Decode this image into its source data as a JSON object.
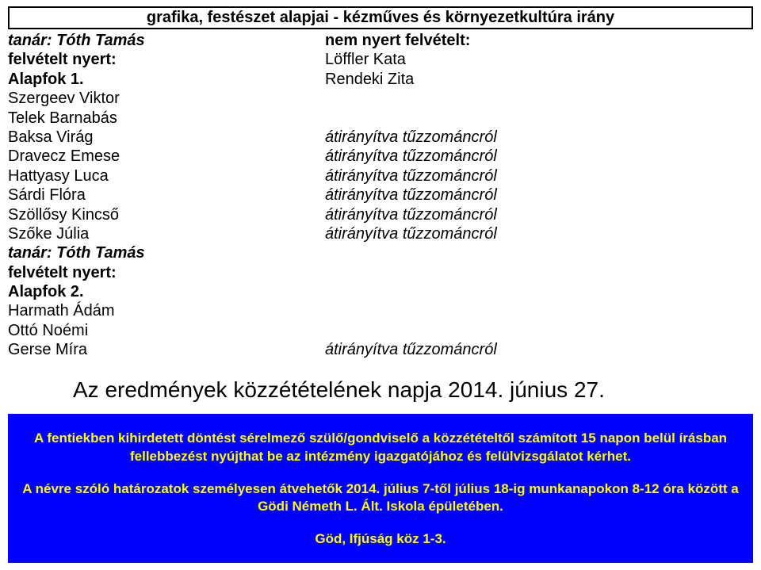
{
  "header_title": "grafika, festészet alapjai - kézműves és környezetkultúra irány",
  "left": {
    "l1": "tanár: Tóth Tamás",
    "l2": "felvételt nyert:",
    "l3": "Alapfok 1.",
    "l4": "Szergeev Viktor",
    "l5": "Telek Barnabás",
    "l6": "Baksa Virág",
    "l7": "Dravecz Emese",
    "l8": "Hattyasy Luca",
    "l9": "Sárdi Flóra",
    "l10": "Szöllősy Kincső",
    "l11": "Szőke Júlia",
    "l12": "tanár: Tóth Tamás",
    "l13": "felvételt nyert:",
    "l14": "Alapfok 2.",
    "l15": "Harmath Ádám",
    "l16": "Ottó Noémi",
    "l17": "Gerse Míra"
  },
  "right": {
    "r1": "nem nyert felvételt:",
    "r2": "Löffler Kata",
    "r3": "Rendeki Zita",
    "r4": "",
    "r5": "",
    "r6": "átirányítva tűzzománcról",
    "r7": "átirányítva tűzzománcról",
    "r8": "átirányítva tűzzománcról",
    "r9": "átirányítva tűzzománcról",
    "r10": "átirányítva tűzzománcról",
    "r11": "átirányítva tűzzománcról",
    "r12": "",
    "r13": "",
    "r14": "",
    "r15": "",
    "r16": "",
    "r17": "átirányítva tűzzománcról"
  },
  "announcement": "Az eredmények közzétételének napja 2014. június 27.",
  "bluebox": {
    "p1": "A fentiekben kihirdetett döntést sérelmező szülő/gondviselő a közzétételtől számított 15 napon belül írásban fellebbezést nyújthat be az intézmény igazgatójához és felülvizsgálatot kérhet.",
    "p2": "A névre szóló határozatok személyesen átvehetők 2014. július 7-től július 18-ig munkanapokon 8-12 óra között a Gödi Németh L. Ált. Iskola épületében.",
    "p3": "Göd, Ifjúság köz 1-3."
  },
  "colors": {
    "page_bg": "#ffffff",
    "text": "#000000",
    "box_bg": "#0000ff",
    "box_text": "#ffff00",
    "border": "#000000"
  }
}
